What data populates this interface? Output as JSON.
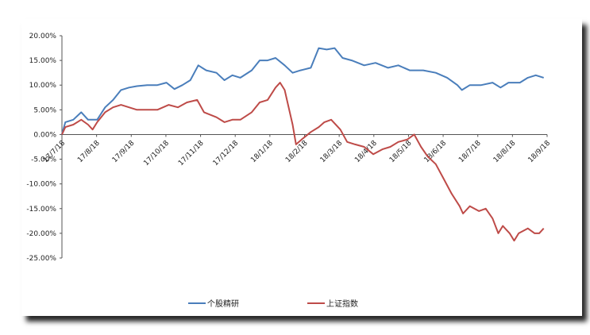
{
  "chart_data": {
    "type": "line",
    "title": "",
    "xlabel": "",
    "ylabel": "",
    "ylim": [
      -0.25,
      0.2
    ],
    "y_ticks": [
      "20.00%",
      "15.00%",
      "10.00%",
      "5.00%",
      "0.00%",
      "-5.00%",
      "-10.00%",
      "-15.00%",
      "-20.00%",
      "-25.00%"
    ],
    "x_ticks": [
      "17/7/18",
      "17/8/18",
      "17/9/18",
      "17/10/18",
      "17/11/18",
      "17/12/18",
      "18/1/18",
      "18/2/18",
      "18/3/18",
      "18/4/18",
      "18/5/18",
      "18/6/18",
      "18/7/18",
      "18/8/18",
      "18/9/18"
    ],
    "legend_position": "bottom",
    "grid": false,
    "series": [
      {
        "name": "个股精研",
        "color": "#4a7ebb",
        "points": [
          [
            "2017-07-18",
            0.0
          ],
          [
            "2017-07-21",
            0.025
          ],
          [
            "2017-07-28",
            0.03
          ],
          [
            "2017-08-04",
            0.045
          ],
          [
            "2017-08-10",
            0.03
          ],
          [
            "2017-08-18",
            0.03
          ],
          [
            "2017-08-25",
            0.055
          ],
          [
            "2017-09-01",
            0.07
          ],
          [
            "2017-09-08",
            0.09
          ],
          [
            "2017-09-15",
            0.095
          ],
          [
            "2017-09-22",
            0.098
          ],
          [
            "2017-10-01",
            0.1
          ],
          [
            "2017-10-10",
            0.1
          ],
          [
            "2017-10-18",
            0.105
          ],
          [
            "2017-10-25",
            0.092
          ],
          [
            "2017-11-01",
            0.1
          ],
          [
            "2017-11-08",
            0.11
          ],
          [
            "2017-11-15",
            0.14
          ],
          [
            "2017-11-22",
            0.13
          ],
          [
            "2017-12-01",
            0.125
          ],
          [
            "2017-12-08",
            0.11
          ],
          [
            "2017-12-15",
            0.12
          ],
          [
            "2017-12-22",
            0.115
          ],
          [
            "2018-01-01",
            0.13
          ],
          [
            "2018-01-08",
            0.15
          ],
          [
            "2018-01-15",
            0.15
          ],
          [
            "2018-01-22",
            0.155
          ],
          [
            "2018-01-30",
            0.14
          ],
          [
            "2018-02-06",
            0.125
          ],
          [
            "2018-02-13",
            0.13
          ],
          [
            "2018-02-22",
            0.135
          ],
          [
            "2018-03-01",
            0.175
          ],
          [
            "2018-03-08",
            0.172
          ],
          [
            "2018-03-15",
            0.175
          ],
          [
            "2018-03-22",
            0.155
          ],
          [
            "2018-03-30",
            0.15
          ],
          [
            "2018-04-10",
            0.14
          ],
          [
            "2018-04-20",
            0.145
          ],
          [
            "2018-05-01",
            0.135
          ],
          [
            "2018-05-10",
            0.14
          ],
          [
            "2018-05-20",
            0.13
          ],
          [
            "2018-06-01",
            0.13
          ],
          [
            "2018-06-12",
            0.125
          ],
          [
            "2018-06-22",
            0.115
          ],
          [
            "2018-07-01",
            0.1
          ],
          [
            "2018-07-05",
            0.09
          ],
          [
            "2018-07-12",
            0.1
          ],
          [
            "2018-07-22",
            0.1
          ],
          [
            "2018-08-01",
            0.105
          ],
          [
            "2018-08-08",
            0.095
          ],
          [
            "2018-08-15",
            0.105
          ],
          [
            "2018-08-25",
            0.105
          ],
          [
            "2018-09-01",
            0.115
          ],
          [
            "2018-09-08",
            0.12
          ],
          [
            "2018-09-15",
            0.115
          ]
        ]
      },
      {
        "name": "上证指数",
        "color": "#be4b48",
        "points": [
          [
            "2017-07-18",
            0.0
          ],
          [
            "2017-07-21",
            0.015
          ],
          [
            "2017-07-28",
            0.02
          ],
          [
            "2017-08-04",
            0.03
          ],
          [
            "2017-08-10",
            0.02
          ],
          [
            "2017-08-14",
            0.01
          ],
          [
            "2017-08-18",
            0.025
          ],
          [
            "2017-08-25",
            0.045
          ],
          [
            "2017-09-01",
            0.055
          ],
          [
            "2017-09-08",
            0.06
          ],
          [
            "2017-09-15",
            0.055
          ],
          [
            "2017-09-22",
            0.05
          ],
          [
            "2017-10-01",
            0.05
          ],
          [
            "2017-10-10",
            0.05
          ],
          [
            "2017-10-20",
            0.06
          ],
          [
            "2017-10-28",
            0.055
          ],
          [
            "2017-11-05",
            0.065
          ],
          [
            "2017-11-14",
            0.07
          ],
          [
            "2017-11-20",
            0.045
          ],
          [
            "2017-12-01",
            0.035
          ],
          [
            "2017-12-08",
            0.025
          ],
          [
            "2017-12-15",
            0.03
          ],
          [
            "2017-12-22",
            0.03
          ],
          [
            "2018-01-01",
            0.045
          ],
          [
            "2018-01-08",
            0.065
          ],
          [
            "2018-01-15",
            0.07
          ],
          [
            "2018-01-22",
            0.095
          ],
          [
            "2018-01-26",
            0.105
          ],
          [
            "2018-01-30",
            0.09
          ],
          [
            "2018-02-06",
            0.02
          ],
          [
            "2018-02-09",
            -0.02
          ],
          [
            "2018-02-14",
            -0.01
          ],
          [
            "2018-02-22",
            0.005
          ],
          [
            "2018-03-01",
            0.015
          ],
          [
            "2018-03-06",
            0.025
          ],
          [
            "2018-03-12",
            0.03
          ],
          [
            "2018-03-20",
            0.01
          ],
          [
            "2018-03-26",
            -0.015
          ],
          [
            "2018-04-02",
            -0.02
          ],
          [
            "2018-04-10",
            -0.025
          ],
          [
            "2018-04-18",
            -0.04
          ],
          [
            "2018-04-26",
            -0.03
          ],
          [
            "2018-05-03",
            -0.025
          ],
          [
            "2018-05-10",
            -0.015
          ],
          [
            "2018-05-18",
            -0.01
          ],
          [
            "2018-05-24",
            0.0
          ],
          [
            "2018-05-30",
            -0.025
          ],
          [
            "2018-06-05",
            -0.045
          ],
          [
            "2018-06-12",
            -0.06
          ],
          [
            "2018-06-19",
            -0.09
          ],
          [
            "2018-06-26",
            -0.12
          ],
          [
            "2018-07-03",
            -0.145
          ],
          [
            "2018-07-06",
            -0.16
          ],
          [
            "2018-07-12",
            -0.145
          ],
          [
            "2018-07-20",
            -0.155
          ],
          [
            "2018-07-26",
            -0.15
          ],
          [
            "2018-08-01",
            -0.17
          ],
          [
            "2018-08-06",
            -0.2
          ],
          [
            "2018-08-10",
            -0.185
          ],
          [
            "2018-08-16",
            -0.2
          ],
          [
            "2018-08-20",
            -0.215
          ],
          [
            "2018-08-24",
            -0.2
          ],
          [
            "2018-09-01",
            -0.19
          ],
          [
            "2018-09-07",
            -0.2
          ],
          [
            "2018-09-11",
            -0.2
          ],
          [
            "2018-09-15",
            -0.19
          ]
        ]
      }
    ]
  }
}
